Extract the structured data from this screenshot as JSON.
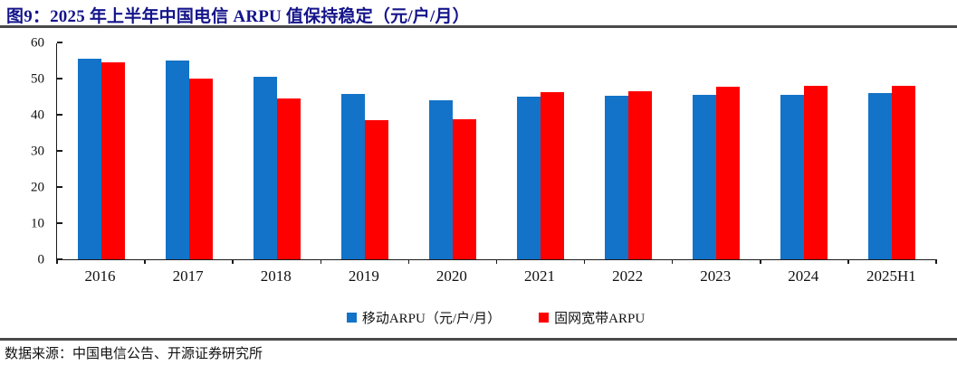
{
  "header": {
    "title": "图9：2025 年上半年中国电信 ARPU 值保持稳定（元/户/月）"
  },
  "source_note": "数据来源：中国电信公告、开源证券研究所",
  "colors": {
    "mobile_blue": "#1273C8",
    "broadband_red": "#FE0000",
    "title_navy": "#14148B",
    "axis": "#1a1a1a",
    "separator": "#4a4a4a"
  },
  "legend": {
    "items": [
      {
        "label": "移动ARPU（元/户/月）",
        "color": "#1273C8"
      },
      {
        "label": "固网宽带ARPU",
        "color": "#FE0000"
      }
    ]
  },
  "chart_data": {
    "type": "bar",
    "title": "2025 年上半年中国电信 ARPU 值保持稳定（元/户/月）",
    "categories": [
      "2016",
      "2017",
      "2018",
      "2019",
      "2020",
      "2021",
      "2022",
      "2023",
      "2024",
      "2025H1"
    ],
    "series": [
      {
        "name": "移动ARPU（元/户/月）",
        "color": "#1273C8",
        "values": [
          55.5,
          55.0,
          50.4,
          45.8,
          44.1,
          45.0,
          45.2,
          45.4,
          45.6,
          46.0
        ]
      },
      {
        "name": "固网宽带ARPU",
        "color": "#FE0000",
        "values": [
          54.4,
          50.0,
          44.5,
          38.4,
          38.7,
          46.3,
          46.6,
          47.8,
          47.9,
          48.0
        ]
      }
    ],
    "xlabel": "",
    "ylabel": "",
    "ylim": [
      0,
      60
    ],
    "y_ticks": [
      0,
      10,
      20,
      30,
      40,
      50,
      60
    ],
    "grid": false,
    "legend_position": "bottom"
  }
}
